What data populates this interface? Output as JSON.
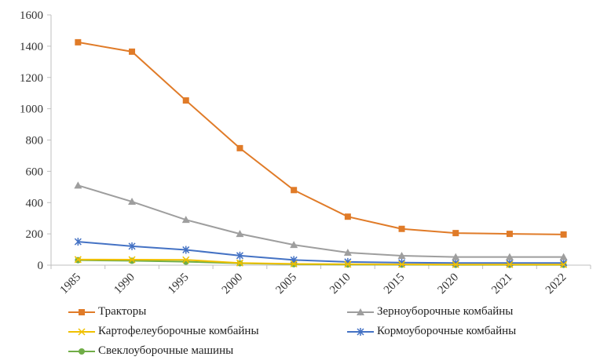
{
  "chart_data": {
    "type": "line",
    "title": "",
    "xlabel": "",
    "ylabel": "",
    "x": [
      "1985",
      "1990",
      "1995",
      "2000",
      "2005",
      "2010",
      "2015",
      "2020",
      "2021",
      "2022"
    ],
    "ylim": [
      0,
      1600
    ],
    "yticks": [
      0,
      200,
      400,
      600,
      800,
      1000,
      1200,
      1400,
      1600
    ],
    "grid": false,
    "legend_position": "bottom",
    "series": [
      {
        "name": "Тракторы",
        "color": "#e07b28",
        "marker": "square",
        "values": [
          1425,
          1365,
          1053,
          748,
          480,
          310,
          232,
          205,
          200,
          196
        ]
      },
      {
        "name": "Зерноуборочные комбайны",
        "color": "#9e9e9e",
        "marker": "triangle",
        "values": [
          510,
          406,
          290,
          200,
          130,
          80,
          60,
          52,
          52,
          52
        ]
      },
      {
        "name": "Картофелеуборочные комбайны",
        "color": "#f0c000",
        "marker": "x",
        "values": [
          36,
          35,
          34,
          14,
          8,
          6,
          5,
          4,
          4,
          4
        ]
      },
      {
        "name": "Кормоуборочные комбайны",
        "color": "#4472c4",
        "marker": "asterisk",
        "values": [
          150,
          121,
          98,
          61,
          33,
          21,
          16,
          14,
          14,
          14
        ]
      },
      {
        "name": "Свеклоуборочные машины",
        "color": "#70ad47",
        "marker": "circle",
        "values": [
          32,
          28,
          22,
          12,
          6,
          4,
          3,
          2,
          2,
          2
        ]
      }
    ]
  }
}
